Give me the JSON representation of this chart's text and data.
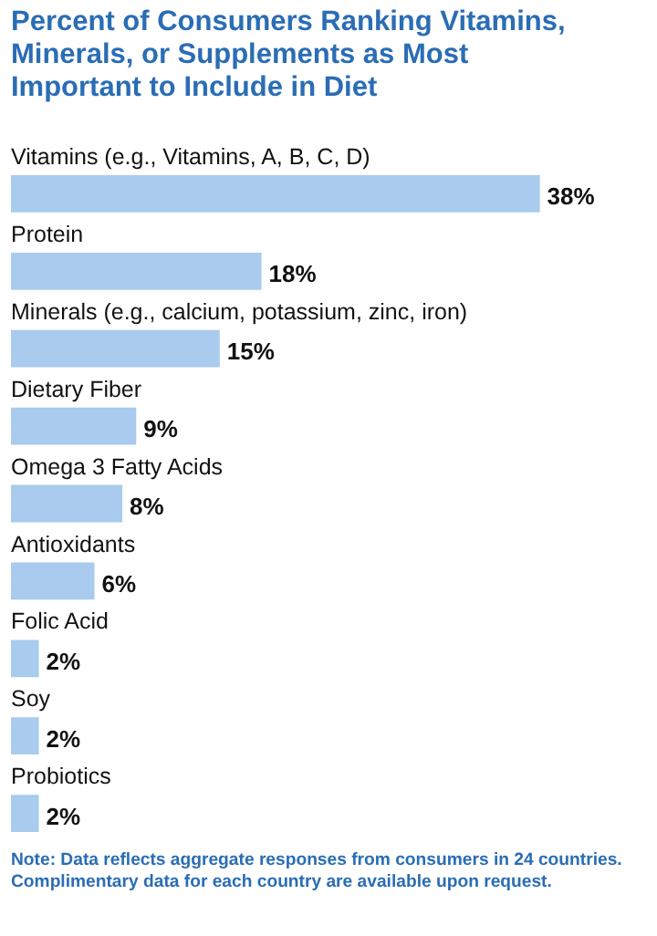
{
  "chart_data": {
    "type": "bar",
    "orientation": "horizontal",
    "title": "Percent of Consumers Ranking Vitamins, Minerals, or Supplements as Most Important to Include in Diet",
    "categories": [
      "Vitamins (e.g., Vitamins, A, B, C, D)",
      "Protein",
      "Minerals (e.g., calcium, potassium, zinc, iron)",
      "Dietary Fiber",
      "Omega 3 Fatty Acids",
      "Antioxidants",
      "Folic Acid",
      "Soy",
      "Probiotics"
    ],
    "values": [
      38,
      18,
      15,
      9,
      8,
      6,
      2,
      2,
      2
    ],
    "value_labels": [
      "38%",
      "18%",
      "15%",
      "9%",
      "8%",
      "6%",
      "2%",
      "2%",
      "2%"
    ],
    "color": "#a8cbee",
    "annotations": [
      "Note: Data reflects aggregate responses from consumers in 24 countries. Complimentary data for each country are available upon request."
    ]
  }
}
